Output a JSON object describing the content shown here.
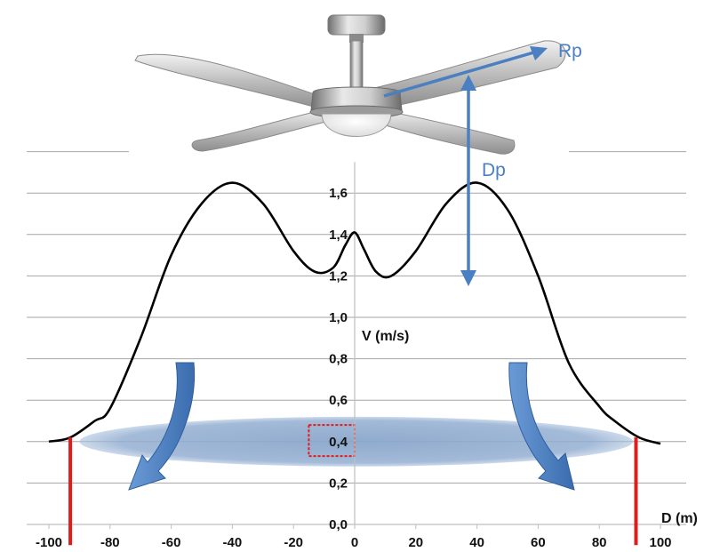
{
  "chart_data": {
    "type": "line",
    "xlabel": "D (m)",
    "ylabel": "V (m/s)",
    "xlim": [
      -100,
      100
    ],
    "ylim": [
      0,
      1.8
    ],
    "x_ticks": [
      "-100",
      "-80",
      "-60",
      "-40",
      "-20",
      "0",
      "20",
      "40",
      "60",
      "80",
      "100"
    ],
    "x_tick_values": [
      -100,
      -80,
      -60,
      -40,
      -20,
      0,
      20,
      40,
      60,
      80,
      100
    ],
    "y_ticks": [
      "0,0",
      "0,2",
      "0,4",
      "0,6",
      "0,8",
      "1,0",
      "1,2",
      "1,4",
      "1,6"
    ],
    "y_tick_values": [
      0,
      0.2,
      0.4,
      0.6,
      0.8,
      1.0,
      1.2,
      1.4,
      1.6
    ],
    "grid": "horizontal",
    "series": [
      {
        "color": "#000000",
        "x": [
          -100,
          -93,
          -85,
          -80,
          -70,
          -60,
          -50,
          -40,
          -30,
          -20,
          -13,
          -7,
          -3,
          0,
          3,
          7,
          12,
          20,
          30,
          40,
          50,
          60,
          70,
          80,
          85,
          93,
          100
        ],
        "y": [
          0.4,
          0.42,
          0.5,
          0.56,
          0.9,
          1.3,
          1.55,
          1.65,
          1.55,
          1.32,
          1.22,
          1.24,
          1.35,
          1.41,
          1.33,
          1.22,
          1.2,
          1.32,
          1.55,
          1.65,
          1.52,
          1.2,
          0.78,
          0.57,
          0.5,
          0.42,
          0.39
        ]
      }
    ],
    "markers": [
      {
        "x": -93,
        "y_from": -0.1,
        "y_to": 0.42,
        "color": "#e21b1b"
      },
      {
        "x": 92,
        "y_from": -0.1,
        "y_to": 0.42,
        "color": "#e21b1b"
      }
    ],
    "highlight_zone": {
      "x_from": -90,
      "x_to": 91,
      "y_center": 0.4,
      "y_halfheight": 0.12,
      "color": "#8ea9cc"
    },
    "highlight_box": {
      "x_from": -15,
      "x_to": 0,
      "y_from": 0.33,
      "y_to": 0.48,
      "color": "#e21b1b"
    }
  },
  "fan": {
    "rp_label": "Rp",
    "dp_label": "Dp",
    "arrow_color": "#4a7fc1"
  },
  "colors": {
    "arrow": "#4a7fc1",
    "gridline": "#a6a6a6",
    "axis": "#bfbfbf"
  }
}
